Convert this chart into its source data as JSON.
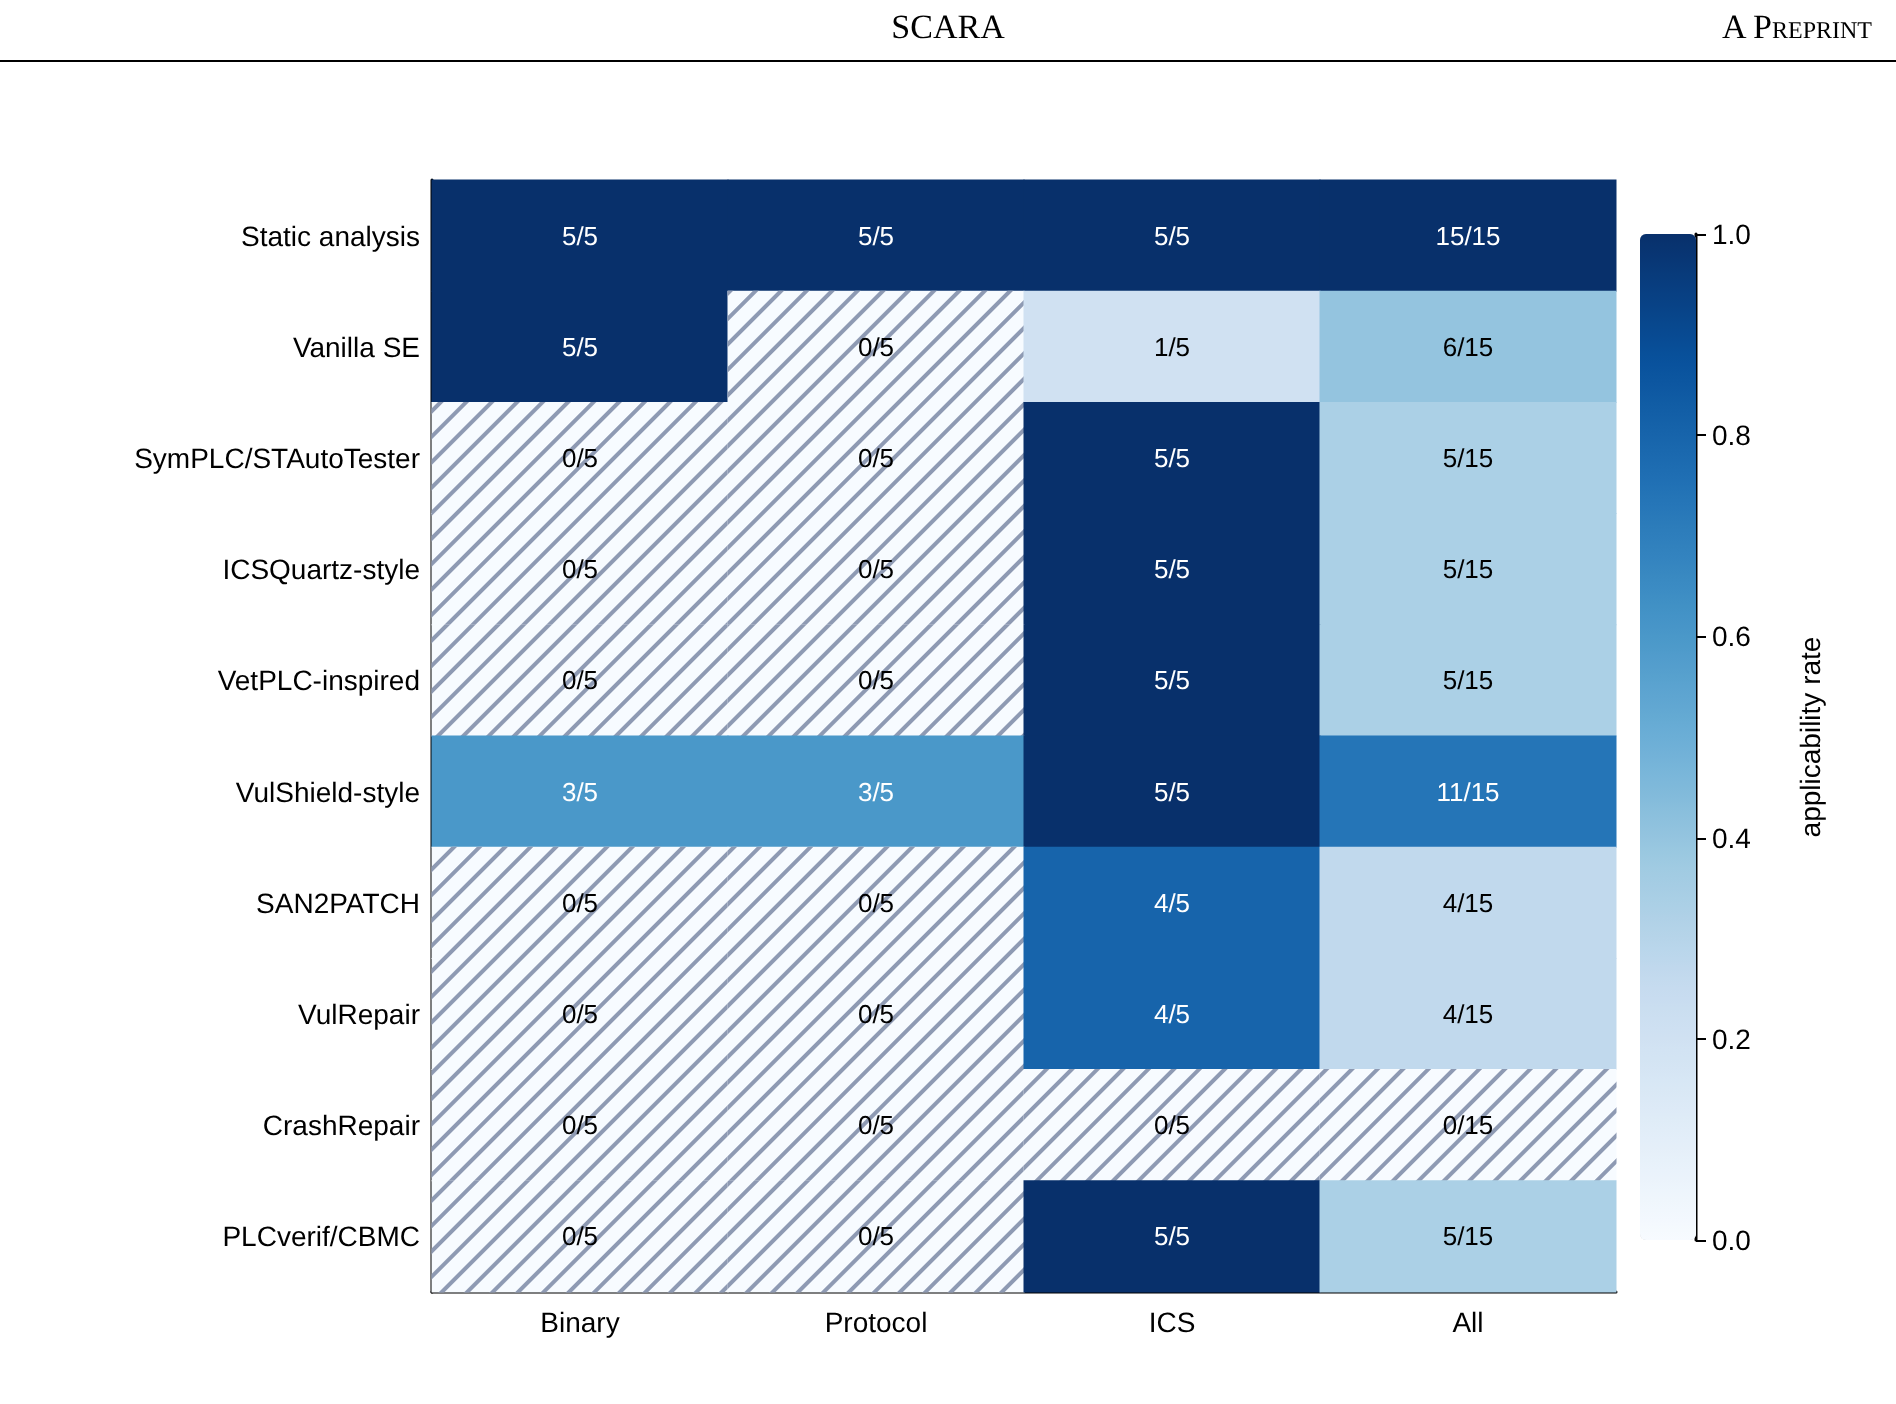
{
  "chart_data": {
    "type": "heatmap",
    "annotations": [
      "SCARA",
      "A Preprint"
    ],
    "categories": [
      "Binary",
      "Protocol",
      "ICS",
      "All"
    ],
    "y_categories": [
      "Static analysis",
      "Vanilla SE",
      "SymPLC/STAutoTester",
      "ICSQuartz-style",
      "VetPLC-inspired",
      "VulShield-style",
      "SAN2PATCH",
      "VulRepair",
      "CrashRepair",
      "PLCverif/CBMC"
    ],
    "cells": [
      [
        1,
        1,
        1,
        1
      ],
      [
        1,
        0,
        0.2,
        0.4
      ],
      [
        0,
        0,
        1,
        0.333
      ],
      [
        0,
        0,
        1,
        0.333
      ],
      [
        0,
        0,
        1,
        0.333
      ],
      [
        0.6,
        0.6,
        1,
        0.733
      ],
      [
        0,
        0,
        0.8,
        0.267
      ],
      [
        0,
        0,
        0.8,
        0.267
      ],
      [
        0,
        0,
        0,
        0
      ],
      [
        0,
        0,
        1,
        0.333
      ]
    ],
    "cell_labels": [
      [
        "5/5",
        "5/5",
        "5/5",
        "15/15"
      ],
      [
        "5/5",
        "0/5",
        "1/5",
        "6/15"
      ],
      [
        "0/5",
        "0/5",
        "5/5",
        "5/15"
      ],
      [
        "0/5",
        "0/5",
        "5/5",
        "5/15"
      ],
      [
        "0/5",
        "0/5",
        "5/5",
        "5/15"
      ],
      [
        "3/5",
        "3/5",
        "5/5",
        "11/15"
      ],
      [
        "0/5",
        "0/5",
        "4/5",
        "4/15"
      ],
      [
        "0/5",
        "0/5",
        "4/5",
        "4/15"
      ],
      [
        "0/5",
        "0/5",
        "0/5",
        "0/15"
      ],
      [
        "0/5",
        "0/5",
        "5/5",
        "5/15"
      ]
    ],
    "clim": [
      0,
      1
    ],
    "cticks": [
      {
        "value": 0,
        "label": "0.0"
      },
      {
        "value": 0.2,
        "label": "0.2"
      },
      {
        "value": 0.4,
        "label": "0.4"
      },
      {
        "value": 0.6,
        "label": "0.6"
      },
      {
        "value": 0.8,
        "label": "0.8"
      },
      {
        "value": 1,
        "label": "1.0"
      }
    ],
    "clabel": "applicability rate"
  }
}
